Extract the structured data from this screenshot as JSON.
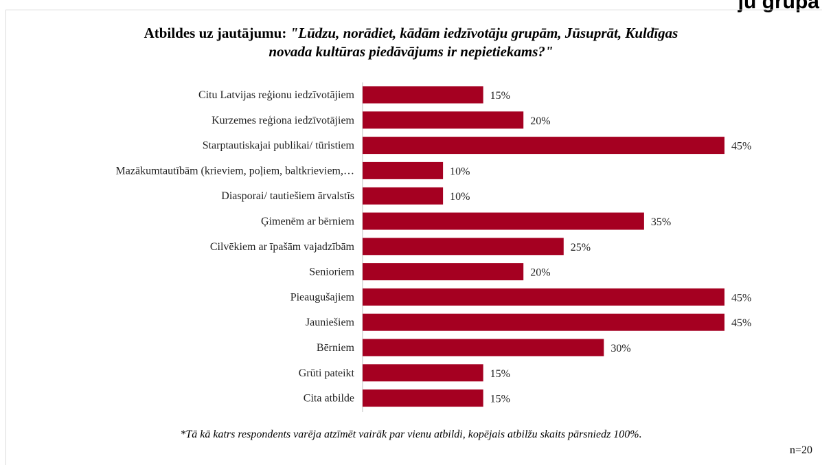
{
  "fragment_text": "ju grupā",
  "title": {
    "prefix": "Atbildes uz jautājumu: ",
    "question_line1": "\"Lūdzu, norādiet, kādām iedzīvotāju grupām, Jūsuprāt, Kuldīgas",
    "question_line2": "novada kultūras piedāvājums ir nepietiekams?\""
  },
  "footnote": "*Tā kā katrs respondents varēja atzīmēt vairāk par vienu atbildi, kopējais atbilžu skaits pārsniedz 100%.",
  "sample_size": "n=20",
  "colors": {
    "bar": "#A50021",
    "axis": "#bfbfbf"
  },
  "chart_data": {
    "type": "bar",
    "orientation": "horizontal",
    "categories": [
      "Citu Latvijas reģionu iedzīvotājiem",
      "Kurzemes reģiona iedzīvotājiem",
      "Starptautiskajai publikai/ tūristiem",
      "Mazākumtautībām (krieviem, poļiem, baltkrieviem,…",
      "Diasporai/ tautiešiem ārvalstīs",
      "Ģimenēm ar bērniem",
      "Cilvēkiem ar īpašām vajadzībām",
      "Senioriem",
      "Pieaugušajiem",
      "Jauniešiem",
      "Bērniem",
      "Grūti pateikt",
      "Cita atbilde"
    ],
    "values": [
      15,
      20,
      45,
      10,
      10,
      35,
      25,
      20,
      45,
      45,
      30,
      15,
      15
    ],
    "value_labels": [
      "15%",
      "20%",
      "45%",
      "10%",
      "10%",
      "35%",
      "25%",
      "20%",
      "45%",
      "45%",
      "30%",
      "15%",
      "15%"
    ],
    "xlim": [
      0,
      45
    ],
    "grid": false,
    "legend": "none"
  }
}
